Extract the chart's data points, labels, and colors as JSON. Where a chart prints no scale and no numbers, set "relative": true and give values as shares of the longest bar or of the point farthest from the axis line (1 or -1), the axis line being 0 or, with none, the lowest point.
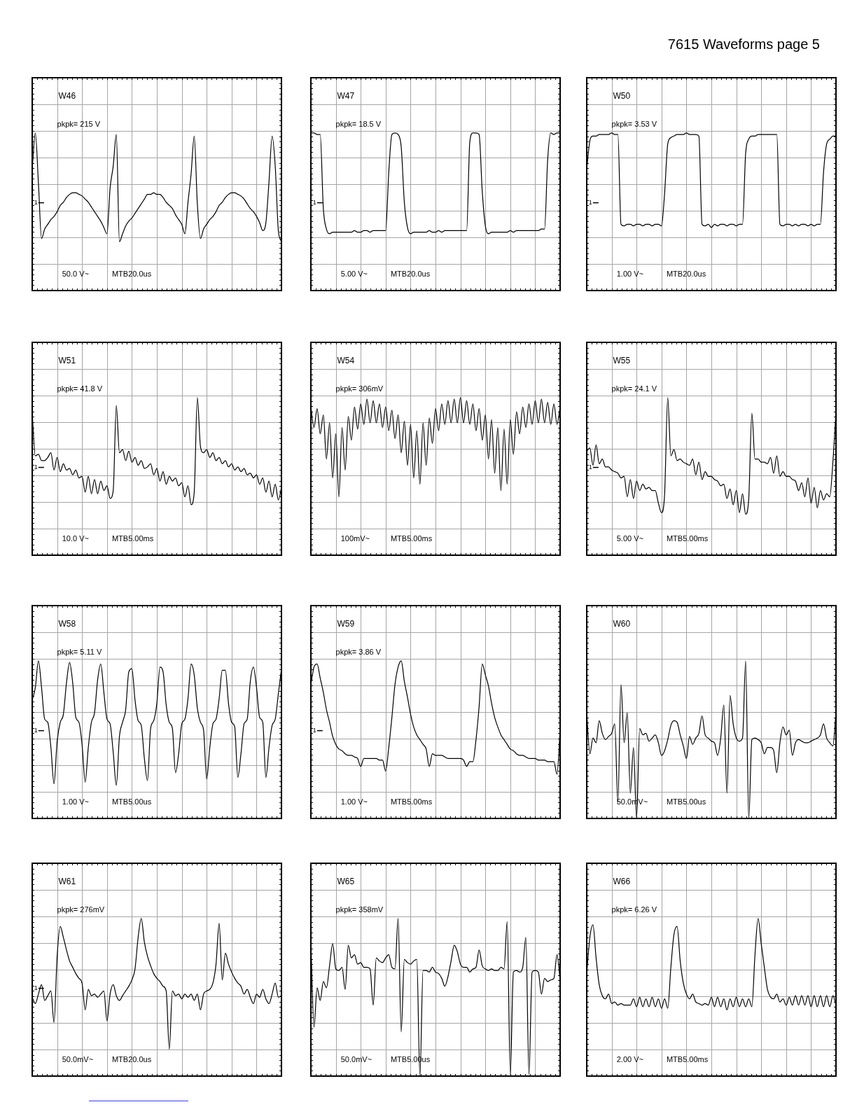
{
  "chart_data": [
    {
      "type": "other",
      "title": "7615 Waveforms page 5"
    },
    {
      "type": "line",
      "relative": true,
      "title": "W46",
      "grid": true,
      "marker": "none",
      "color": "#000000",
      "categories": [
        null,
        null,
        null,
        null,
        null,
        null,
        null,
        null,
        null,
        null,
        null,
        null,
        null,
        null,
        null,
        null,
        null,
        null,
        null,
        null,
        null,
        null,
        null,
        null,
        null,
        null,
        null,
        null,
        null,
        null,
        null,
        null,
        null,
        null,
        null,
        null,
        null,
        null,
        null,
        null,
        null,
        null,
        null,
        null,
        null,
        null,
        null,
        null,
        null,
        null,
        null,
        null,
        null,
        null,
        null,
        null,
        null,
        null,
        null,
        null,
        null,
        null,
        null,
        null,
        null,
        null,
        null,
        null,
        null,
        null,
        null,
        null,
        null,
        null,
        null,
        null,
        null,
        null,
        null,
        null,
        null
      ],
      "values": [
        0.77,
        1,
        0.68,
        0.33,
        0.39,
        0.42,
        0.45,
        0.47,
        0.5,
        0.54,
        0.56,
        0.59,
        0.61,
        0.62,
        0.62,
        0.61,
        0.6,
        0.58,
        0.56,
        0.53,
        0.5,
        0.47,
        0.44,
        0.4,
        0.36,
        0.65,
        0.79,
        0.99,
        0.31,
        0.36,
        0.41,
        0.44,
        0.46,
        0.49,
        0.52,
        0.55,
        0.58,
        0.61,
        0.61,
        0.62,
        0.61,
        0.61,
        0.59,
        0.56,
        0.54,
        0.52,
        0.48,
        0.45,
        0.42,
        0.36,
        0.56,
        0.74,
        0.98,
        0.55,
        0.33,
        0.39,
        0.42,
        0.45,
        0.47,
        0.5,
        0.54,
        0.56,
        0.59,
        0.61,
        0.62,
        0.62,
        0.61,
        0.6,
        0.58,
        0.55,
        0.52,
        0.5,
        0.47,
        0.43,
        0.38,
        0.43,
        0.69,
        0.98,
        0.79,
        0.38,
        0.31
      ],
      "annotations": [
        "50.0 V~",
        "MTB20.0us",
        "pkpk= 215 V",
        "1"
      ]
    },
    {
      "type": "line",
      "relative": true,
      "title": "W47",
      "grid": true,
      "marker": "none",
      "color": "#000000",
      "categories": [
        null,
        null,
        null,
        null,
        null,
        null,
        null,
        null,
        null,
        null,
        null,
        null,
        null,
        null,
        null,
        null,
        null,
        null,
        null,
        null,
        null,
        null,
        null,
        null,
        null,
        null,
        null,
        null,
        null,
        null,
        null,
        null,
        null,
        null,
        null,
        null,
        null,
        null,
        null,
        null,
        null,
        null,
        null,
        null,
        null,
        null,
        null,
        null,
        null,
        null,
        null,
        null,
        null,
        null,
        null,
        null,
        null,
        null,
        null,
        null,
        null,
        null,
        null,
        null,
        null,
        null,
        null,
        null,
        null,
        null,
        null,
        null,
        null,
        null,
        null,
        null,
        null,
        null,
        null,
        null,
        null
      ],
      "values": [
        1,
        1,
        0.99,
        0.99,
        0.52,
        0.39,
        0.36,
        0.37,
        0.37,
        0.37,
        0.37,
        0.37,
        0.37,
        0.37,
        0.38,
        0.37,
        0.37,
        0.38,
        0.38,
        0.37,
        0.38,
        0.38,
        0.38,
        0.38,
        0.38,
        0.75,
        0.99,
        1,
        0.99,
        0.91,
        0.56,
        0.4,
        0.36,
        0.37,
        0.37,
        0.37,
        0.37,
        0.37,
        0.38,
        0.37,
        0.37,
        0.38,
        0.37,
        0.38,
        0.38,
        0.38,
        0.38,
        0.38,
        0.38,
        0.38,
        0.38,
        0.94,
        1,
        1,
        0.99,
        0.63,
        0.41,
        0.36,
        0.37,
        0.37,
        0.37,
        0.37,
        0.37,
        0.37,
        0.38,
        0.37,
        0.38,
        0.38,
        0.38,
        0.38,
        0.38,
        0.38,
        0.38,
        0.38,
        0.39,
        0.39,
        0.83,
        1,
        0.99,
        1,
        1
      ],
      "annotations": [
        "5.00 V~",
        "MTB20.0us",
        "pkpk= 18.5 V",
        "1"
      ]
    },
    {
      "type": "line",
      "relative": true,
      "title": "W50",
      "grid": true,
      "marker": "none",
      "color": "#000000",
      "categories": [
        null,
        null,
        null,
        null,
        null,
        null,
        null,
        null,
        null,
        null,
        null,
        null,
        null,
        null,
        null,
        null,
        null,
        null,
        null,
        null,
        null,
        null,
        null,
        null,
        null,
        null,
        null,
        null,
        null,
        null,
        null,
        null,
        null,
        null,
        null,
        null,
        null,
        null,
        null,
        null,
        null,
        null,
        null,
        null,
        null,
        null,
        null,
        null,
        null,
        null,
        null,
        null,
        null,
        null,
        null,
        null,
        null,
        null,
        null,
        null,
        null,
        null,
        null,
        null,
        null,
        null,
        null,
        null,
        null,
        null,
        null,
        null,
        null,
        null,
        null,
        null,
        null,
        null,
        null,
        null,
        null
      ],
      "values": [
        0.77,
        0.95,
        0.98,
        0.98,
        0.99,
        0.99,
        0.99,
        0.99,
        1,
        0.99,
        0.99,
        0.42,
        0.41,
        0.42,
        0.42,
        0.41,
        0.42,
        0.42,
        0.41,
        0.42,
        0.42,
        0.41,
        0.42,
        0.42,
        0.41,
        0.62,
        0.93,
        0.97,
        0.98,
        0.99,
        0.99,
        0.99,
        1,
        0.99,
        0.99,
        0.99,
        0.98,
        0.42,
        0.41,
        0.42,
        0.4,
        0.42,
        0.41,
        0.42,
        0.42,
        0.41,
        0.42,
        0.42,
        0.41,
        0.42,
        0.42,
        0.87,
        0.96,
        0.98,
        0.98,
        0.99,
        0.99,
        0.99,
        0.99,
        0.99,
        0.99,
        0.99,
        0.42,
        0.41,
        0.42,
        0.42,
        0.41,
        0.42,
        0.41,
        0.42,
        0.42,
        0.41,
        0.42,
        0.41,
        0.42,
        0.42,
        0.75,
        0.93,
        0.96,
        0.98,
        0.98
      ],
      "annotations": [
        "1.00 V~",
        "MTB20.0us",
        "pkpk= 3.53 V",
        "1"
      ]
    },
    {
      "type": "line",
      "relative": true,
      "title": "W51",
      "grid": true,
      "marker": "none",
      "color": "#000000",
      "categories": [
        null,
        null,
        null,
        null,
        null,
        null,
        null,
        null,
        null,
        null,
        null,
        null,
        null,
        null,
        null,
        null,
        null,
        null,
        null,
        null,
        null,
        null,
        null,
        null,
        null,
        null,
        null,
        null,
        null,
        null,
        null,
        null,
        null,
        null,
        null,
        null,
        null,
        null,
        null,
        null,
        null,
        null,
        null,
        null,
        null,
        null,
        null,
        null,
        null,
        null,
        null,
        null,
        null,
        null,
        null,
        null,
        null,
        null,
        null,
        null,
        null,
        null,
        null,
        null,
        null,
        null,
        null,
        null,
        null,
        null,
        null,
        null,
        null,
        null,
        null,
        null,
        null,
        null,
        null,
        null,
        null
      ],
      "values": [
        0.9,
        0.63,
        0.64,
        0.6,
        0.6,
        0.62,
        0.65,
        0.54,
        0.62,
        0.53,
        0.58,
        0.54,
        0.55,
        0.51,
        0.54,
        0.49,
        0.5,
        0.4,
        0.5,
        0.39,
        0.48,
        0.39,
        0.47,
        0.41,
        0.44,
        0.36,
        0.41,
        0.95,
        0.65,
        0.67,
        0.6,
        0.66,
        0.59,
        0.62,
        0.57,
        0.6,
        0.55,
        0.56,
        0.58,
        0.51,
        0.55,
        0.47,
        0.53,
        0.45,
        0.5,
        0.47,
        0.49,
        0.44,
        0.46,
        0.37,
        0.44,
        0.32,
        0.4,
        1,
        0.69,
        0.65,
        0.67,
        0.62,
        0.65,
        0.6,
        0.62,
        0.58,
        0.6,
        0.56,
        0.58,
        0.54,
        0.56,
        0.53,
        0.55,
        0.51,
        0.52,
        0.49,
        0.51,
        0.45,
        0.49,
        0.4,
        0.47,
        0.37,
        0.45,
        0.35,
        0.43
      ],
      "annotations": [
        "10.0 V~",
        "MTB5.00ms",
        "pkpk= 41.8 V",
        "1"
      ]
    },
    {
      "type": "line",
      "relative": true,
      "title": "W54",
      "grid": true,
      "marker": "none",
      "color": "#000000",
      "categories": [
        null,
        null,
        null,
        null,
        null,
        null,
        null,
        null,
        null,
        null,
        null,
        null,
        null,
        null,
        null,
        null,
        null,
        null,
        null,
        null,
        null,
        null,
        null,
        null,
        null,
        null,
        null,
        null,
        null,
        null,
        null,
        null,
        null,
        null,
        null,
        null,
        null,
        null,
        null,
        null,
        null,
        null,
        null,
        null,
        null,
        null,
        null,
        null,
        null,
        null,
        null,
        null,
        null,
        null,
        null,
        null,
        null,
        null,
        null,
        null,
        null,
        null,
        null,
        null,
        null,
        null,
        null,
        null,
        null,
        null,
        null,
        null,
        null,
        null,
        null,
        null,
        null,
        null,
        null,
        null,
        null
      ],
      "values": [
        0.94,
        0.81,
        0.93,
        0.77,
        0.89,
        0.61,
        0.84,
        0.49,
        0.77,
        0.37,
        0.81,
        0.54,
        0.88,
        0.73,
        0.94,
        0.8,
        0.96,
        0.83,
        0.99,
        0.84,
        0.98,
        0.84,
        0.96,
        0.81,
        0.94,
        0.79,
        0.92,
        0.74,
        0.89,
        0.65,
        0.85,
        0.57,
        0.83,
        0.49,
        0.79,
        0.45,
        0.84,
        0.57,
        0.87,
        0.71,
        0.93,
        0.79,
        0.96,
        0.83,
        0.98,
        0.84,
        0.99,
        0.84,
        1,
        0.84,
        0.98,
        0.83,
        0.96,
        0.79,
        0.93,
        0.73,
        0.89,
        0.61,
        0.86,
        0.52,
        0.81,
        0.41,
        0.8,
        0.45,
        0.86,
        0.64,
        0.91,
        0.77,
        0.94,
        0.81,
        0.96,
        0.83,
        0.98,
        0.84,
        0.99,
        0.84,
        0.97,
        0.83,
        0.96,
        0.83,
        0.94
      ],
      "annotations": [
        "100mV~",
        "MTB5.00ms",
        "pkpk= 306mV"
      ]
    },
    {
      "type": "line",
      "relative": true,
      "title": "W55",
      "grid": true,
      "marker": "none",
      "color": "#000000",
      "categories": [
        null,
        null,
        null,
        null,
        null,
        null,
        null,
        null,
        null,
        null,
        null,
        null,
        null,
        null,
        null,
        null,
        null,
        null,
        null,
        null,
        null,
        null,
        null,
        null,
        null,
        null,
        null,
        null,
        null,
        null,
        null,
        null,
        null,
        null,
        null,
        null,
        null,
        null,
        null,
        null,
        null,
        null,
        null,
        null,
        null,
        null,
        null,
        null,
        null,
        null,
        null,
        null,
        null,
        null,
        null,
        null,
        null,
        null,
        null,
        null,
        null,
        null,
        null,
        null,
        null,
        null,
        null,
        null,
        null,
        null,
        null,
        null,
        null,
        null,
        null,
        null,
        null,
        null,
        null,
        null,
        null
      ],
      "values": [
        0.66,
        0.68,
        0.57,
        0.7,
        0.58,
        0.61,
        0.56,
        0.56,
        0.54,
        0.53,
        0.52,
        0.49,
        0.5,
        0.37,
        0.48,
        0.36,
        0.47,
        0.41,
        0.45,
        0.42,
        0.43,
        0.41,
        0.41,
        0.33,
        0.27,
        0.39,
        1,
        0.63,
        0.67,
        0.6,
        0.61,
        0.59,
        0.58,
        0.57,
        0.61,
        0.51,
        0.59,
        0.48,
        0.53,
        0.5,
        0.5,
        0.48,
        0.47,
        0.44,
        0.45,
        0.36,
        0.42,
        0.32,
        0.41,
        0.27,
        0.39,
        0.26,
        0.36,
        0.9,
        0.61,
        0.61,
        0.59,
        0.59,
        0.58,
        0.62,
        0.52,
        0.63,
        0.5,
        0.53,
        0.5,
        0.5,
        0.48,
        0.47,
        0.41,
        0.46,
        0.37,
        0.49,
        0.33,
        0.43,
        0.3,
        0.41,
        0.35,
        0.39,
        0.37,
        0.59,
        0.91
      ],
      "annotations": [
        "5.00 V~",
        "MTB5.00ms",
        "pkpk= 24.1 V",
        "1"
      ]
    },
    {
      "type": "line",
      "relative": true,
      "title": "W58",
      "grid": true,
      "marker": "none",
      "color": "#000000",
      "categories": [
        null,
        null,
        null,
        null,
        null,
        null,
        null,
        null,
        null,
        null,
        null,
        null,
        null,
        null,
        null,
        null,
        null,
        null,
        null,
        null,
        null,
        null,
        null,
        null,
        null,
        null,
        null,
        null,
        null,
        null,
        null,
        null,
        null,
        null,
        null,
        null,
        null,
        null,
        null,
        null,
        null,
        null,
        null,
        null,
        null,
        null,
        null,
        null,
        null,
        null,
        null,
        null,
        null,
        null,
        null,
        null,
        null,
        null,
        null,
        null,
        null,
        null,
        null,
        null,
        null,
        null,
        null,
        null,
        null,
        null,
        null,
        null,
        null,
        null,
        null,
        null,
        null,
        null,
        null,
        null,
        null
      ],
      "values": [
        0.75,
        0.83,
        1,
        0.83,
        0.63,
        0.61,
        0.45,
        0.22,
        0.49,
        0.61,
        0.66,
        0.86,
        0.99,
        0.86,
        0.64,
        0.61,
        0.47,
        0.23,
        0.45,
        0.61,
        0.67,
        0.88,
        0.98,
        0.8,
        0.63,
        0.6,
        0.42,
        0.21,
        0.52,
        0.61,
        0.69,
        0.93,
        0.95,
        0.75,
        0.62,
        0.59,
        0.38,
        0.24,
        0.57,
        0.62,
        0.73,
        0.96,
        0.93,
        0.72,
        0.61,
        0.57,
        0.29,
        0.41,
        0.6,
        0.63,
        0.76,
        0.98,
        0.91,
        0.7,
        0.61,
        0.56,
        0.25,
        0.45,
        0.6,
        0.63,
        0.76,
        0.94,
        0.94,
        0.73,
        0.61,
        0.58,
        0.26,
        0.41,
        0.6,
        0.63,
        0.87,
        0.96,
        0.83,
        0.64,
        0.61,
        0.26,
        0.45,
        0.59,
        0.63,
        0.79,
        0.95
      ],
      "annotations": [
        "1.00 V~",
        "MTB5.00us",
        "pkpk= 5.11 V",
        "1"
      ]
    },
    {
      "type": "line",
      "relative": true,
      "title": "W59",
      "grid": true,
      "marker": "none",
      "color": "#000000",
      "categories": [
        null,
        null,
        null,
        null,
        null,
        null,
        null,
        null,
        null,
        null,
        null,
        null,
        null,
        null,
        null,
        null,
        null,
        null,
        null,
        null,
        null,
        null,
        null,
        null,
        null,
        null,
        null,
        null,
        null,
        null,
        null,
        null,
        null,
        null,
        null,
        null,
        null,
        null,
        null,
        null,
        null,
        null,
        null,
        null,
        null,
        null,
        null,
        null,
        null,
        null,
        null,
        null,
        null,
        null,
        null,
        null,
        null,
        null,
        null,
        null,
        null,
        null,
        null,
        null,
        null,
        null,
        null,
        null,
        null,
        null,
        null,
        null,
        null,
        null,
        null,
        null,
        null,
        null,
        null,
        null,
        null
      ],
      "values": [
        0.85,
        0.96,
        0.98,
        0.89,
        0.8,
        0.69,
        0.61,
        0.52,
        0.47,
        0.44,
        0.43,
        0.41,
        0.4,
        0.4,
        0.39,
        0.38,
        0.33,
        0.38,
        0.38,
        0.38,
        0.38,
        0.38,
        0.37,
        0.37,
        0.3,
        0.45,
        0.64,
        0.85,
        0.96,
        1,
        0.87,
        0.77,
        0.66,
        0.58,
        0.53,
        0.5,
        0.47,
        0.44,
        0.33,
        0.41,
        0.4,
        0.4,
        0.4,
        0.39,
        0.38,
        0.38,
        0.38,
        0.38,
        0.38,
        0.37,
        0.33,
        0.36,
        0.36,
        0.5,
        0.71,
        0.98,
        0.91,
        0.84,
        0.73,
        0.64,
        0.58,
        0.53,
        0.5,
        0.47,
        0.44,
        0.43,
        0.41,
        0.4,
        0.4,
        0.39,
        0.38,
        0.38,
        0.38,
        0.37,
        0.37,
        0.37,
        0.36,
        0.36,
        0.36,
        0.28,
        0.56
      ],
      "annotations": [
        "1.00 V~",
        "MTB5.00ms",
        "pkpk= 3.86 V",
        "1"
      ]
    },
    {
      "type": "line",
      "relative": true,
      "title": "W60",
      "grid": true,
      "marker": "none",
      "color": "#000000",
      "categories": [
        null,
        null,
        null,
        null,
        null,
        null,
        null,
        null,
        null,
        null,
        null,
        null,
        null,
        null,
        null,
        null,
        null,
        null,
        null,
        null,
        null,
        null,
        null,
        null,
        null,
        null,
        null,
        null,
        null,
        null,
        null,
        null,
        null,
        null,
        null,
        null,
        null,
        null,
        null,
        null,
        null,
        null,
        null,
        null,
        null,
        null,
        null,
        null,
        null,
        null,
        null,
        null,
        null,
        null,
        null,
        null,
        null,
        null,
        null,
        null,
        null,
        null,
        null,
        null,
        null,
        null,
        null,
        null,
        null,
        null,
        null,
        null,
        null,
        null,
        null,
        null,
        null,
        null,
        null,
        null,
        null
      ],
      "values": [
        0.67,
        0.41,
        0.51,
        0.48,
        0.62,
        0.54,
        0.5,
        0.52,
        0.54,
        0.6,
        0.1,
        0.85,
        0.48,
        0.67,
        0.16,
        0.45,
        0,
        0.57,
        0.53,
        0.54,
        0.49,
        0.51,
        0.53,
        0.48,
        0.4,
        0.43,
        0.5,
        0.59,
        0.62,
        0.61,
        0.53,
        0.46,
        0.38,
        0.52,
        0.47,
        0.51,
        0.54,
        0.65,
        0.53,
        0.51,
        0.49,
        0.48,
        0.4,
        0.51,
        0.72,
        0.16,
        0.78,
        0.6,
        0.51,
        0.49,
        0.51,
        1,
        0,
        0.5,
        0.51,
        0.5,
        0.48,
        0.41,
        0.45,
        0.45,
        0.43,
        0.29,
        0.48,
        0.58,
        0.53,
        0.56,
        0.4,
        0.48,
        0.5,
        0.49,
        0.48,
        0.48,
        0.49,
        0.5,
        0.51,
        0.53,
        0.6,
        0.51,
        0.48,
        0.46,
        0.67
      ],
      "annotations": [
        "50.0mV~",
        "MTB5.00us"
      ]
    },
    {
      "type": "line",
      "relative": true,
      "title": "W61",
      "grid": true,
      "marker": "none",
      "color": "#000000",
      "categories": [
        null,
        null,
        null,
        null,
        null,
        null,
        null,
        null,
        null,
        null,
        null,
        null,
        null,
        null,
        null,
        null,
        null,
        null,
        null,
        null,
        null,
        null,
        null,
        null,
        null,
        null,
        null,
        null,
        null,
        null,
        null,
        null,
        null,
        null,
        null,
        null,
        null,
        null,
        null,
        null,
        null,
        null,
        null,
        null,
        null,
        null,
        null,
        null,
        null,
        null,
        null,
        null,
        null,
        null,
        null,
        null,
        null,
        null,
        null,
        null,
        null,
        null,
        null,
        null,
        null,
        null,
        null,
        null,
        null,
        null,
        null,
        null,
        null,
        null,
        null,
        null,
        null,
        null,
        null,
        null,
        null
      ],
      "values": [
        0.5,
        0.46,
        0.52,
        0.58,
        0.48,
        0.51,
        0.54,
        0.34,
        0.76,
        0.95,
        0.88,
        0.8,
        0.73,
        0.69,
        0.65,
        0.62,
        0.59,
        0.42,
        0.55,
        0.51,
        0.52,
        0.5,
        0.52,
        0.54,
        0.35,
        0.52,
        0.58,
        0.51,
        0.48,
        0.51,
        0.54,
        0.57,
        0.61,
        0.68,
        0.88,
        1,
        0.85,
        0.76,
        0.7,
        0.65,
        0.62,
        0.6,
        0.57,
        0.54,
        0.17,
        0.54,
        0.51,
        0.52,
        0.49,
        0.52,
        0.5,
        0.52,
        0.48,
        0.52,
        0.42,
        0.52,
        0.54,
        0.55,
        0.59,
        0.71,
        0.97,
        0.61,
        0.78,
        0.71,
        0.66,
        0.62,
        0.59,
        0.57,
        0.52,
        0.55,
        0.5,
        0.46,
        0.52,
        0.5,
        0.55,
        0.49,
        0.46,
        0.52,
        0.59,
        0.5,
        0.51
      ],
      "annotations": [
        "50.0mV~",
        "MTB20.0us",
        "pkpk= 276mV",
        "1"
      ]
    },
    {
      "type": "line",
      "relative": true,
      "title": "W65",
      "grid": true,
      "marker": "none",
      "color": "#000000",
      "categories": [
        null,
        null,
        null,
        null,
        null,
        null,
        null,
        null,
        null,
        null,
        null,
        null,
        null,
        null,
        null,
        null,
        null,
        null,
        null,
        null,
        null,
        null,
        null,
        null,
        null,
        null,
        null,
        null,
        null,
        null,
        null,
        null,
        null,
        null,
        null,
        null,
        null,
        null,
        null,
        null,
        null,
        null,
        null,
        null,
        null,
        null,
        null,
        null,
        null,
        null,
        null,
        null,
        null,
        null,
        null,
        null,
        null,
        null,
        null,
        null,
        null,
        null,
        null,
        null,
        null,
        null,
        null,
        null,
        null,
        null,
        null,
        null,
        null,
        null,
        null,
        null,
        null,
        null,
        null,
        null,
        null
      ],
      "values": [
        0.85,
        0.31,
        0.56,
        0.48,
        0.6,
        0.56,
        0.7,
        0.84,
        0.68,
        0.67,
        0.69,
        0.55,
        0.83,
        0.75,
        0.77,
        0.71,
        0.72,
        0.69,
        0.69,
        0.68,
        0.45,
        0.75,
        0.73,
        0.72,
        0.75,
        0.77,
        0.69,
        0.68,
        1,
        0.28,
        0.74,
        0.72,
        0.71,
        0.73,
        0.74,
        0,
        0.67,
        0.67,
        0.66,
        0.69,
        0.66,
        0.65,
        0.62,
        0.57,
        0.63,
        0.73,
        0.83,
        0.79,
        0.71,
        0.69,
        0.69,
        0.66,
        0.68,
        0.69,
        0.8,
        0.7,
        0.68,
        0.67,
        0.68,
        0.67,
        0.67,
        0.69,
        0.68,
        0.98,
        0.01,
        0.66,
        0.67,
        0.66,
        0.69,
        0.88,
        0.01,
        0.66,
        0.67,
        0.66,
        0.52,
        0.62,
        0.6,
        0.61,
        0.62,
        0.77,
        0.61
      ],
      "annotations": [
        "50.0mV~",
        "MTB5.00us",
        "pkpk= 358mV"
      ]
    },
    {
      "type": "line",
      "relative": true,
      "title": "W66",
      "grid": true,
      "marker": "none",
      "color": "#000000",
      "categories": [
        null,
        null,
        null,
        null,
        null,
        null,
        null,
        null,
        null,
        null,
        null,
        null,
        null,
        null,
        null,
        null,
        null,
        null,
        null,
        null,
        null,
        null,
        null,
        null,
        null,
        null,
        null,
        null,
        null,
        null,
        null,
        null,
        null,
        null,
        null,
        null,
        null,
        null,
        null,
        null,
        null,
        null,
        null,
        null,
        null,
        null,
        null,
        null,
        null,
        null,
        null,
        null,
        null,
        null,
        null,
        null,
        null,
        null,
        null,
        null,
        null,
        null,
        null,
        null,
        null,
        null,
        null,
        null,
        null,
        null,
        null,
        null,
        null,
        null,
        null,
        null,
        null,
        null,
        null,
        null,
        null
      ],
      "values": [
        0.65,
        0.88,
        0.96,
        0.75,
        0.58,
        0.51,
        0.49,
        0.52,
        0.46,
        0.47,
        0.45,
        0.46,
        0.45,
        0.45,
        0.45,
        0.49,
        0.44,
        0.5,
        0.44,
        0.49,
        0.44,
        0.5,
        0.44,
        0.49,
        0.43,
        0.49,
        0.43,
        0.69,
        0.9,
        0.95,
        0.73,
        0.59,
        0.52,
        0.49,
        0.52,
        0.47,
        0.46,
        0.45,
        0.46,
        0.45,
        0.5,
        0.44,
        0.5,
        0.44,
        0.49,
        0.42,
        0.49,
        0.44,
        0.5,
        0.44,
        0.49,
        0.44,
        0.49,
        0.44,
        0.77,
        1,
        0.84,
        0.69,
        0.55,
        0.5,
        0.49,
        0.52,
        0.47,
        0.49,
        0.45,
        0.5,
        0.45,
        0.51,
        0.45,
        0.51,
        0.45,
        0.51,
        0.44,
        0.51,
        0.44,
        0.51,
        0.44,
        0.51,
        0.44,
        0.51,
        0.45
      ],
      "annotations": [
        "2.00 V~",
        "MTB5.00ms",
        "pkpk= 6.26 V"
      ]
    }
  ]
}
